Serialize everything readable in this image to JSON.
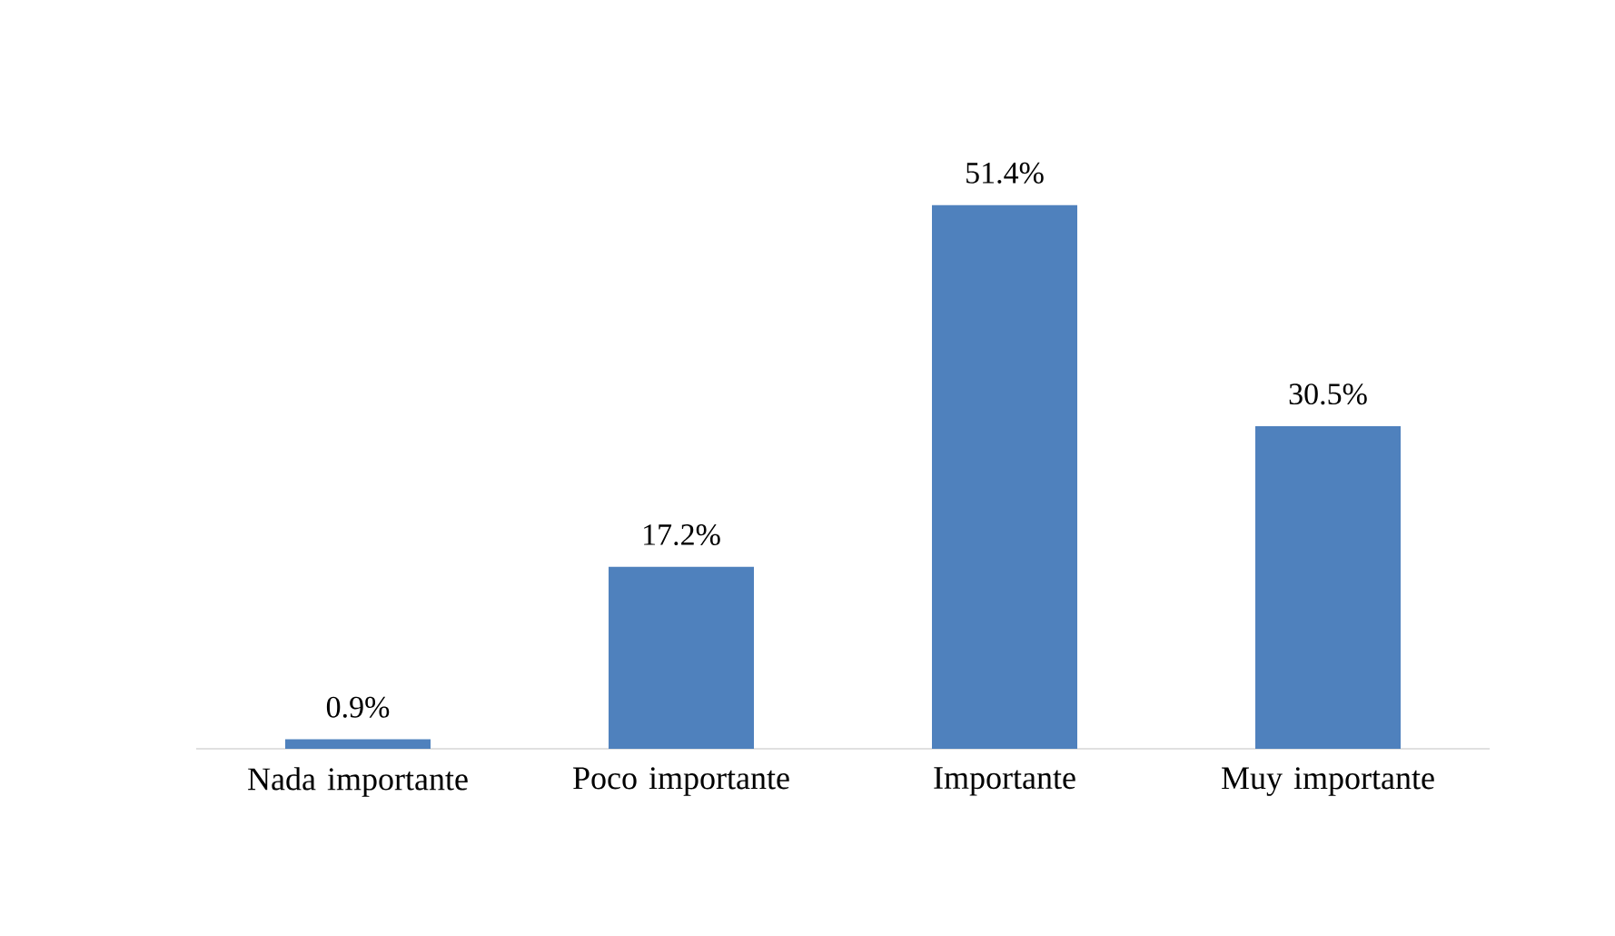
{
  "chart_data": {
    "type": "bar",
    "categories": [
      "Nada importante",
      "Poco importante",
      "Importante",
      "Muy importante"
    ],
    "values": [
      0.9,
      17.2,
      51.4,
      30.5
    ],
    "value_labels": [
      "0.9%",
      "17.2%",
      "51.4%",
      "30.5%"
    ],
    "color": "#4f81bd"
  }
}
